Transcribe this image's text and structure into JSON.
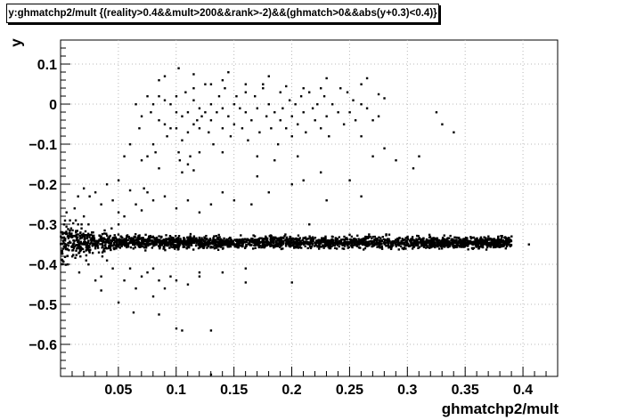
{
  "chart_data": {
    "type": "scatter",
    "title": "y:ghmatchp2/mult {(reality>0.4&&mult>200&&rank>-2)&&(ghmatch>0&&abs(y+0.3)<0.4)}",
    "xlabel": "ghmatchp2/mult",
    "ylabel": "y",
    "xlim": [
      0.0,
      0.43
    ],
    "ylim": [
      -0.68,
      0.16
    ],
    "xticks": [
      0.05,
      0.1,
      0.15,
      0.2,
      0.25,
      0.3,
      0.35,
      0.4
    ],
    "xtick_labels": [
      "0.05",
      "0.1",
      "0.15",
      "0.2",
      "0.25",
      "0.3",
      "0.35",
      "0.4"
    ],
    "yticks": [
      0.1,
      0.0,
      -0.1,
      -0.2,
      -0.3,
      -0.4,
      -0.5,
      -0.6
    ],
    "ytick_labels": [
      "0.1",
      "0",
      "−0.1",
      "−0.2",
      "−0.3",
      "−0.4",
      "−0.5",
      "−0.6"
    ],
    "grid": true,
    "legend": "none",
    "marker_color": "#000000",
    "series": [
      {
        "points": [
          [
            0.005,
            -0.27
          ],
          [
            0.008,
            -0.29
          ],
          [
            0.012,
            -0.26
          ],
          [
            0.015,
            -0.3
          ],
          [
            0.01,
            -0.38
          ],
          [
            0.006,
            -0.4
          ],
          [
            0.014,
            -0.36
          ],
          [
            0.018,
            -0.3
          ],
          [
            0.02,
            -0.28
          ],
          [
            0.022,
            -0.39
          ],
          [
            0.025,
            -0.37
          ],
          [
            0.028,
            -0.32
          ],
          [
            0.011,
            -0.34
          ],
          [
            0.016,
            -0.42
          ],
          [
            0.009,
            -0.31
          ],
          [
            0.019,
            -0.33
          ],
          [
            0.024,
            -0.4
          ],
          [
            0.03,
            -0.36
          ],
          [
            0.013,
            -0.29
          ],
          [
            0.017,
            -0.38
          ],
          [
            0.02,
            -0.21
          ],
          [
            0.025,
            -0.23
          ],
          [
            0.03,
            -0.22
          ],
          [
            0.015,
            -0.23
          ],
          [
            0.04,
            -0.2
          ],
          [
            0.035,
            -0.25
          ],
          [
            0.045,
            -0.24
          ],
          [
            0.05,
            -0.27
          ],
          [
            0.05,
            -0.3
          ],
          [
            0.055,
            -0.28
          ],
          [
            0.04,
            -0.39
          ],
          [
            0.045,
            -0.41
          ],
          [
            0.035,
            -0.43
          ],
          [
            0.03,
            -0.44
          ],
          [
            0.055,
            -0.44
          ],
          [
            0.06,
            -0.41
          ],
          [
            0.07,
            -0.43
          ],
          [
            0.075,
            -0.42
          ],
          [
            0.08,
            -0.41
          ],
          [
            0.085,
            -0.44
          ],
          [
            0.035,
            -0.465
          ],
          [
            0.05,
            -0.495
          ],
          [
            0.063,
            -0.52
          ],
          [
            0.08,
            -0.48
          ],
          [
            0.09,
            -0.46
          ],
          [
            0.1,
            -0.44
          ],
          [
            0.11,
            -0.45
          ],
          [
            0.12,
            -0.43
          ],
          [
            0.14,
            -0.42
          ],
          [
            0.16,
            -0.41
          ],
          [
            0.16,
            -0.445
          ],
          [
            0.2,
            -0.445
          ],
          [
            0.085,
            -0.525
          ],
          [
            0.1,
            -0.56
          ],
          [
            0.105,
            -0.565
          ],
          [
            0.13,
            -0.565
          ],
          [
            0.13,
            -0.675
          ],
          [
            0.12,
            -0.42
          ],
          [
            0.095,
            -0.43
          ],
          [
            0.065,
            -0.46
          ],
          [
            0.06,
            -0.215
          ],
          [
            0.065,
            -0.25
          ],
          [
            0.07,
            -0.265
          ],
          [
            0.075,
            -0.22
          ],
          [
            0.08,
            -0.24
          ],
          [
            0.09,
            -0.23
          ],
          [
            0.1,
            -0.26
          ],
          [
            0.11,
            -0.24
          ],
          [
            0.12,
            -0.27
          ],
          [
            0.13,
            -0.25
          ],
          [
            0.14,
            -0.22
          ],
          [
            0.15,
            -0.24
          ],
          [
            0.165,
            -0.25
          ],
          [
            0.17,
            -0.18
          ],
          [
            0.18,
            -0.22
          ],
          [
            0.2,
            -0.2
          ],
          [
            0.215,
            -0.3
          ],
          [
            0.225,
            -0.17
          ],
          [
            0.23,
            -0.24
          ],
          [
            0.25,
            -0.19
          ],
          [
            0.26,
            -0.23
          ],
          [
            0.27,
            -0.13
          ],
          [
            0.29,
            -0.14
          ],
          [
            0.31,
            -0.13
          ],
          [
            0.34,
            -0.07
          ],
          [
            0.33,
            -0.05
          ],
          [
            0.325,
            -0.02
          ],
          [
            0.305,
            -0.16
          ],
          [
            0.28,
            -0.11
          ],
          [
            0.26,
            -0.08
          ],
          [
            0.05,
            -0.19
          ],
          [
            0.055,
            -0.13
          ],
          [
            0.06,
            -0.1
          ],
          [
            0.068,
            -0.06
          ],
          [
            0.07,
            -0.14
          ],
          [
            0.072,
            -0.21
          ],
          [
            0.075,
            -0.13
          ],
          [
            0.08,
            -0.1
          ],
          [
            0.082,
            -0.12
          ],
          [
            0.085,
            -0.16
          ],
          [
            0.065,
            0.0
          ],
          [
            0.07,
            -0.03
          ],
          [
            0.075,
            0.02
          ],
          [
            0.078,
            -0.02
          ],
          [
            0.08,
            0.0
          ],
          [
            0.085,
            0.02
          ],
          [
            0.085,
            -0.04
          ],
          [
            0.09,
            -0.05
          ],
          [
            0.09,
            0.01
          ],
          [
            0.092,
            -0.08
          ],
          [
            0.095,
            0.0
          ],
          [
            0.095,
            -0.06
          ],
          [
            0.1,
            -0.02
          ],
          [
            0.1,
            0.02
          ],
          [
            0.1,
            -0.06
          ],
          [
            0.102,
            -0.12
          ],
          [
            0.105,
            -0.03
          ],
          [
            0.105,
            -0.09
          ],
          [
            0.108,
            0.03
          ],
          [
            0.11,
            -0.02
          ],
          [
            0.11,
            -0.07
          ],
          [
            0.112,
            -0.13
          ],
          [
            0.115,
            0.01
          ],
          [
            0.115,
            -0.05
          ],
          [
            0.118,
            -0.04
          ],
          [
            0.12,
            -0.01
          ],
          [
            0.12,
            -0.06
          ],
          [
            0.122,
            -0.03
          ],
          [
            0.125,
            0.05
          ],
          [
            0.125,
            -0.02
          ],
          [
            0.128,
            -0.07
          ],
          [
            0.13,
            0.0
          ],
          [
            0.13,
            -0.04
          ],
          [
            0.132,
            -0.1
          ],
          [
            0.135,
            -0.02
          ],
          [
            0.137,
            0.02
          ],
          [
            0.14,
            -0.06
          ],
          [
            0.14,
            -0.01
          ],
          [
            0.142,
            0.04
          ],
          [
            0.145,
            -0.03
          ],
          [
            0.147,
            -0.08
          ],
          [
            0.15,
            0.0
          ],
          [
            0.15,
            -0.05
          ],
          [
            0.152,
            0.02
          ],
          [
            0.155,
            -0.01
          ],
          [
            0.157,
            -0.06
          ],
          [
            0.16,
            0.03
          ],
          [
            0.16,
            -0.02
          ],
          [
            0.162,
            -0.09
          ],
          [
            0.165,
            -0.04
          ],
          [
            0.168,
            0.02
          ],
          [
            0.17,
            -0.01
          ],
          [
            0.172,
            -0.07
          ],
          [
            0.175,
            0.05
          ],
          [
            0.178,
            -0.03
          ],
          [
            0.18,
            0.0
          ],
          [
            0.182,
            -0.06
          ],
          [
            0.185,
            -0.02
          ],
          [
            0.188,
            -0.1
          ],
          [
            0.19,
            0.03
          ],
          [
            0.19,
            -0.04
          ],
          [
            0.192,
            -0.01
          ],
          [
            0.195,
            -0.06
          ],
          [
            0.198,
            0.01
          ],
          [
            0.2,
            -0.03
          ],
          [
            0.2,
            -0.08
          ],
          [
            0.203,
            0.0
          ],
          [
            0.205,
            -0.05
          ],
          [
            0.208,
            0.02
          ],
          [
            0.21,
            -0.02
          ],
          [
            0.212,
            -0.07
          ],
          [
            0.215,
            0.03
          ],
          [
            0.218,
            -0.01
          ],
          [
            0.22,
            -0.04
          ],
          [
            0.222,
            0.0
          ],
          [
            0.225,
            -0.06
          ],
          [
            0.228,
            0.02
          ],
          [
            0.23,
            -0.03
          ],
          [
            0.232,
            -0.08
          ],
          [
            0.235,
            0.0
          ],
          [
            0.24,
            -0.02
          ],
          [
            0.242,
            0.04
          ],
          [
            0.245,
            -0.05
          ],
          [
            0.25,
            -0.02
          ],
          [
            0.253,
            0.01
          ],
          [
            0.255,
            -0.04
          ],
          [
            0.26,
            0.0
          ],
          [
            0.265,
            -0.01
          ],
          [
            0.27,
            -0.04
          ],
          [
            0.275,
            -0.03
          ],
          [
            0.102,
            0.09
          ],
          [
            0.09,
            0.07
          ],
          [
            0.085,
            0.06
          ],
          [
            0.115,
            0.075
          ],
          [
            0.115,
            0.04
          ],
          [
            0.13,
            0.05
          ],
          [
            0.14,
            0.06
          ],
          [
            0.145,
            0.08
          ],
          [
            0.16,
            0.05
          ],
          [
            0.175,
            0.04
          ],
          [
            0.18,
            0.07
          ],
          [
            0.195,
            0.045
          ],
          [
            0.21,
            0.04
          ],
          [
            0.225,
            0.04
          ],
          [
            0.23,
            0.065
          ],
          [
            0.248,
            0.03
          ],
          [
            0.26,
            0.05
          ],
          [
            0.275,
            0.025
          ],
          [
            0.28,
            0.015
          ],
          [
            0.265,
            0.065
          ],
          [
            0.103,
            -0.14
          ],
          [
            0.11,
            -0.15
          ],
          [
            0.105,
            -0.17
          ],
          [
            0.12,
            -0.12
          ],
          [
            0.14,
            -0.12
          ],
          [
            0.17,
            -0.13
          ],
          [
            0.185,
            -0.14
          ],
          [
            0.205,
            -0.13
          ],
          [
            0.21,
            -0.19
          ],
          [
            0.115,
            -0.165
          ],
          [
            0.03,
            -0.35
          ],
          [
            0.04,
            -0.36
          ],
          [
            0.015,
            -0.325
          ],
          [
            0.02,
            -0.345
          ],
          [
            0.035,
            -0.33
          ],
          [
            0.045,
            -0.335
          ],
          [
            0.012,
            -0.355
          ],
          [
            0.027,
            -0.32
          ],
          [
            0.042,
            -0.345
          ],
          [
            0.033,
            -0.37
          ],
          [
            0.018,
            -0.31
          ],
          [
            0.038,
            -0.315
          ],
          [
            0.022,
            -0.365
          ],
          [
            0.048,
            -0.36
          ],
          [
            0.006,
            -0.33
          ],
          [
            0.01,
            -0.355
          ],
          [
            0.024,
            -0.3
          ],
          [
            0.036,
            -0.38
          ],
          [
            0.044,
            -0.31
          ],
          [
            0.052,
            -0.33
          ],
          [
            0.35,
            -0.34
          ],
          [
            0.355,
            -0.335
          ],
          [
            0.36,
            -0.345
          ],
          [
            0.365,
            -0.34
          ],
          [
            0.37,
            -0.35
          ],
          [
            0.375,
            -0.345
          ],
          [
            0.378,
            -0.355
          ],
          [
            0.38,
            -0.34
          ],
          [
            0.39,
            -0.33
          ],
          [
            0.405,
            -0.35
          ],
          [
            0.385,
            -0.36
          ],
          [
            0.37,
            -0.33
          ],
          [
            0.36,
            -0.355
          ],
          [
            0.35,
            -0.352
          ],
          [
            0.345,
            -0.338
          ],
          [
            0.34,
            -0.346
          ],
          [
            0.335,
            -0.342
          ],
          [
            0.33,
            -0.35
          ],
          [
            0.325,
            -0.34
          ],
          [
            0.32,
            -0.348
          ]
        ]
      }
    ],
    "band": {
      "x": [
        0.0,
        0.39
      ],
      "y_center": -0.345,
      "y_spread_edge": 0.004,
      "y_spread_left": 0.02,
      "point_count": 2600
    }
  }
}
